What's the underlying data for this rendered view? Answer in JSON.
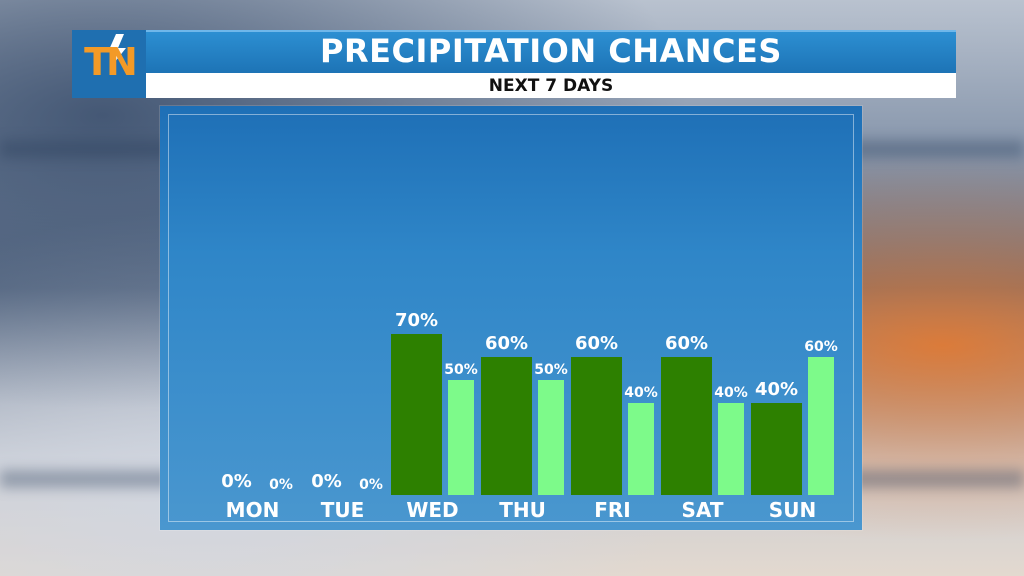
{
  "header": {
    "title": "PRECIPITATION CHANCES",
    "subtitle": "NEXT 7 DAYS",
    "logo_text": "TN",
    "logo_icon": "lightning-bolt-icon"
  },
  "colors": {
    "series1": "#2d8000",
    "series2": "#7dfa8a",
    "title_bar": "#2080c8",
    "logo_text": "#f39a27"
  },
  "chart_data": {
    "type": "bar",
    "title": "PRECIPITATION CHANCES",
    "subtitle": "NEXT 7 DAYS",
    "categories": [
      "MON",
      "TUE",
      "WED",
      "THU",
      "FRI",
      "SAT",
      "SUN"
    ],
    "series": [
      {
        "values": [
          0,
          0,
          70,
          60,
          60,
          60,
          40
        ],
        "labels": [
          "0%",
          "0%",
          "70%",
          "60%",
          "60%",
          "60%",
          "40%"
        ]
      },
      {
        "values": [
          0,
          0,
          50,
          50,
          40,
          40,
          60
        ],
        "labels": [
          "0%",
          "0%",
          "50%",
          "50%",
          "40%",
          "40%",
          "60%"
        ]
      }
    ],
    "ylim": [
      0,
      100
    ],
    "grid": false,
    "legend": "none"
  }
}
